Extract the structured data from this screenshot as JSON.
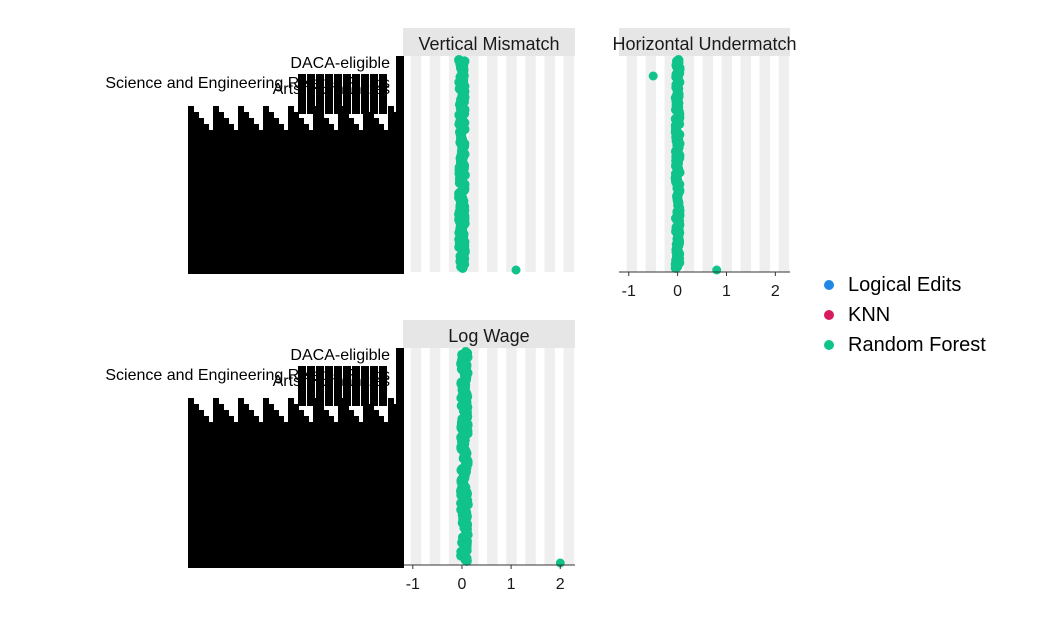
{
  "colors": {
    "Logical Edits": "#1f88e5",
    "KNN": "#d81b60",
    "Random Forest": "#10c38a",
    "strip": "#e6e6e6",
    "band": "#efefef"
  },
  "legend": {
    "items": [
      {
        "label": "Logical Edits",
        "color": "#1f88e5"
      },
      {
        "label": "KNN",
        "color": "#d81b60"
      },
      {
        "label": "Random Forest",
        "color": "#10c38a"
      }
    ]
  },
  "row_labels": {
    "daca": "DACA-eligible",
    "sci": "Science and Engineering Related Fields",
    "arts": "Arts, Humanities"
  },
  "chart_data": [
    {
      "type": "scatter",
      "title": "Vertical Mismatch",
      "x_ticks": [],
      "xlim": [
        -1.2,
        2.3
      ],
      "series": [
        {
          "name": "Random Forest",
          "highlight": [
            {
              "x": 1.1,
              "y": 0
            }
          ],
          "cluster_center": 0.0,
          "cluster_spread": 0.06
        }
      ]
    },
    {
      "type": "scatter",
      "title": "Horizontal Undermatch",
      "x_ticks": [
        -1,
        0,
        1,
        2
      ],
      "xlim": [
        -1.2,
        2.3
      ],
      "series": [
        {
          "name": "Random Forest",
          "highlight": [
            {
              "x": 0.8,
              "y": 0
            },
            {
              "x": -0.5,
              "y": 0.9
            }
          ],
          "cluster_center": 0.0,
          "cluster_spread": 0.04
        }
      ]
    },
    {
      "type": "scatter",
      "title": "Log Wage",
      "x_ticks": [
        -1,
        0,
        1,
        2
      ],
      "xlim": [
        -1.2,
        2.3
      ],
      "series": [
        {
          "name": "Random Forest",
          "highlight": [
            {
              "x": 2.0,
              "y": 0
            }
          ],
          "cluster_center": 0.05,
          "cluster_spread": 0.07
        }
      ]
    }
  ]
}
